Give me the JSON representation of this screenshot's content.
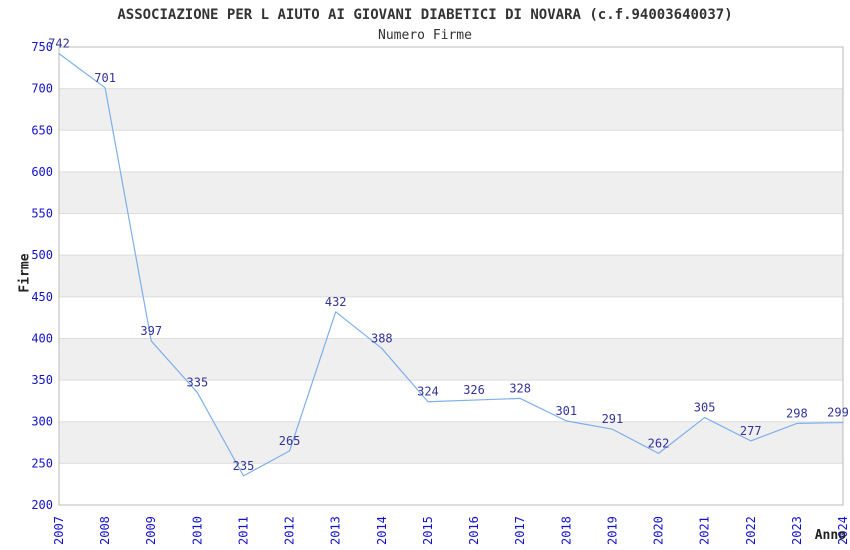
{
  "header": {
    "title": "ASSOCIAZIONE PER L AIUTO AI GIOVANI DIABETICI DI NOVARA (c.f.94003640037)",
    "subtitle": "Numero Firme"
  },
  "chart_data": {
    "type": "line",
    "title": "ASSOCIAZIONE PER L AIUTO AI GIOVANI DIABETICI DI NOVARA (c.f.94003640037)",
    "subtitle": "Numero Firme",
    "xlabel": "Anno",
    "ylabel": "Firme",
    "x": [
      2007,
      2008,
      2009,
      2010,
      2011,
      2012,
      2013,
      2014,
      2015,
      2016,
      2017,
      2018,
      2019,
      2020,
      2021,
      2022,
      2023,
      2024
    ],
    "series": [
      {
        "name": "Numero Firme",
        "values": [
          742,
          701,
          397,
          335,
          235,
          265,
          432,
          388,
          324,
          326,
          328,
          301,
          291,
          262,
          305,
          277,
          298,
          299
        ]
      }
    ],
    "ylim": [
      200,
      750
    ],
    "ytick_step": 50,
    "yticks": [
      200,
      250,
      300,
      350,
      400,
      450,
      500,
      550,
      600,
      650,
      700,
      750
    ],
    "grid": true,
    "banded_background": true,
    "legend": false,
    "data_labels_visible": true
  },
  "colors": {
    "line": "#7db0e8",
    "tick_label": "#1212cf",
    "data_label": "#333399",
    "band": "#efefef",
    "gridline": "#dedede",
    "border": "#bbbbbb",
    "text": "#333333"
  }
}
